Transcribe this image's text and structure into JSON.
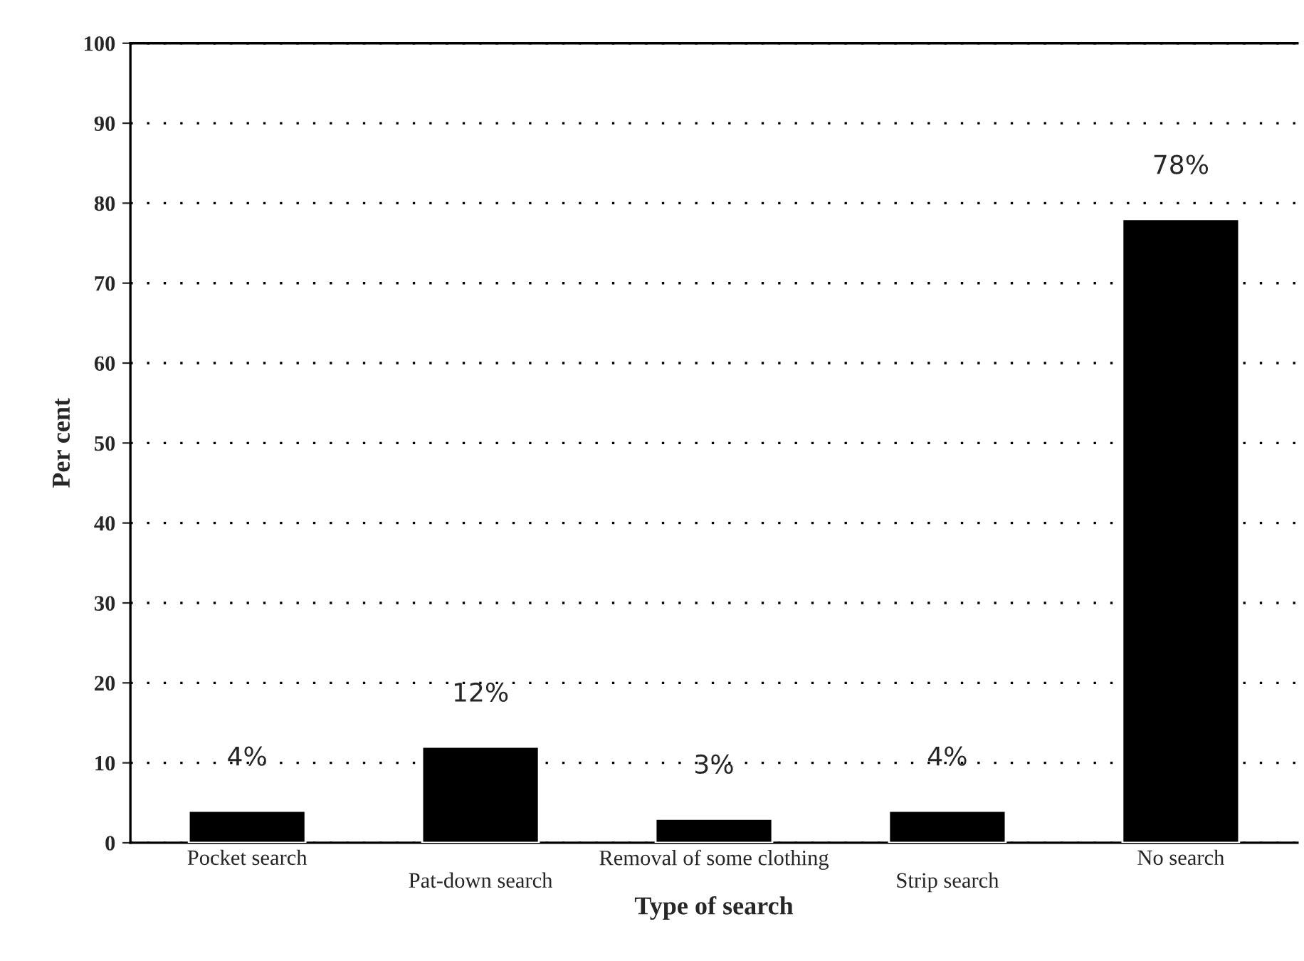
{
  "chart_data": {
    "type": "bar",
    "xlabel": "Type of search",
    "ylabel": "Per cent",
    "categories": [
      "Pocket search",
      "Pat-down search",
      "Removal of some clothing",
      "Strip search",
      "No search"
    ],
    "values": [
      4,
      12,
      3,
      4,
      78
    ],
    "value_labels": [
      "4%",
      "12%",
      "3%",
      "4%",
      "78%"
    ],
    "color": "#000000",
    "ylim": [
      0,
      100
    ],
    "yticks": [
      0,
      10,
      20,
      30,
      40,
      50,
      60,
      70,
      80,
      90,
      100
    ],
    "grid": "y",
    "legend": false
  }
}
